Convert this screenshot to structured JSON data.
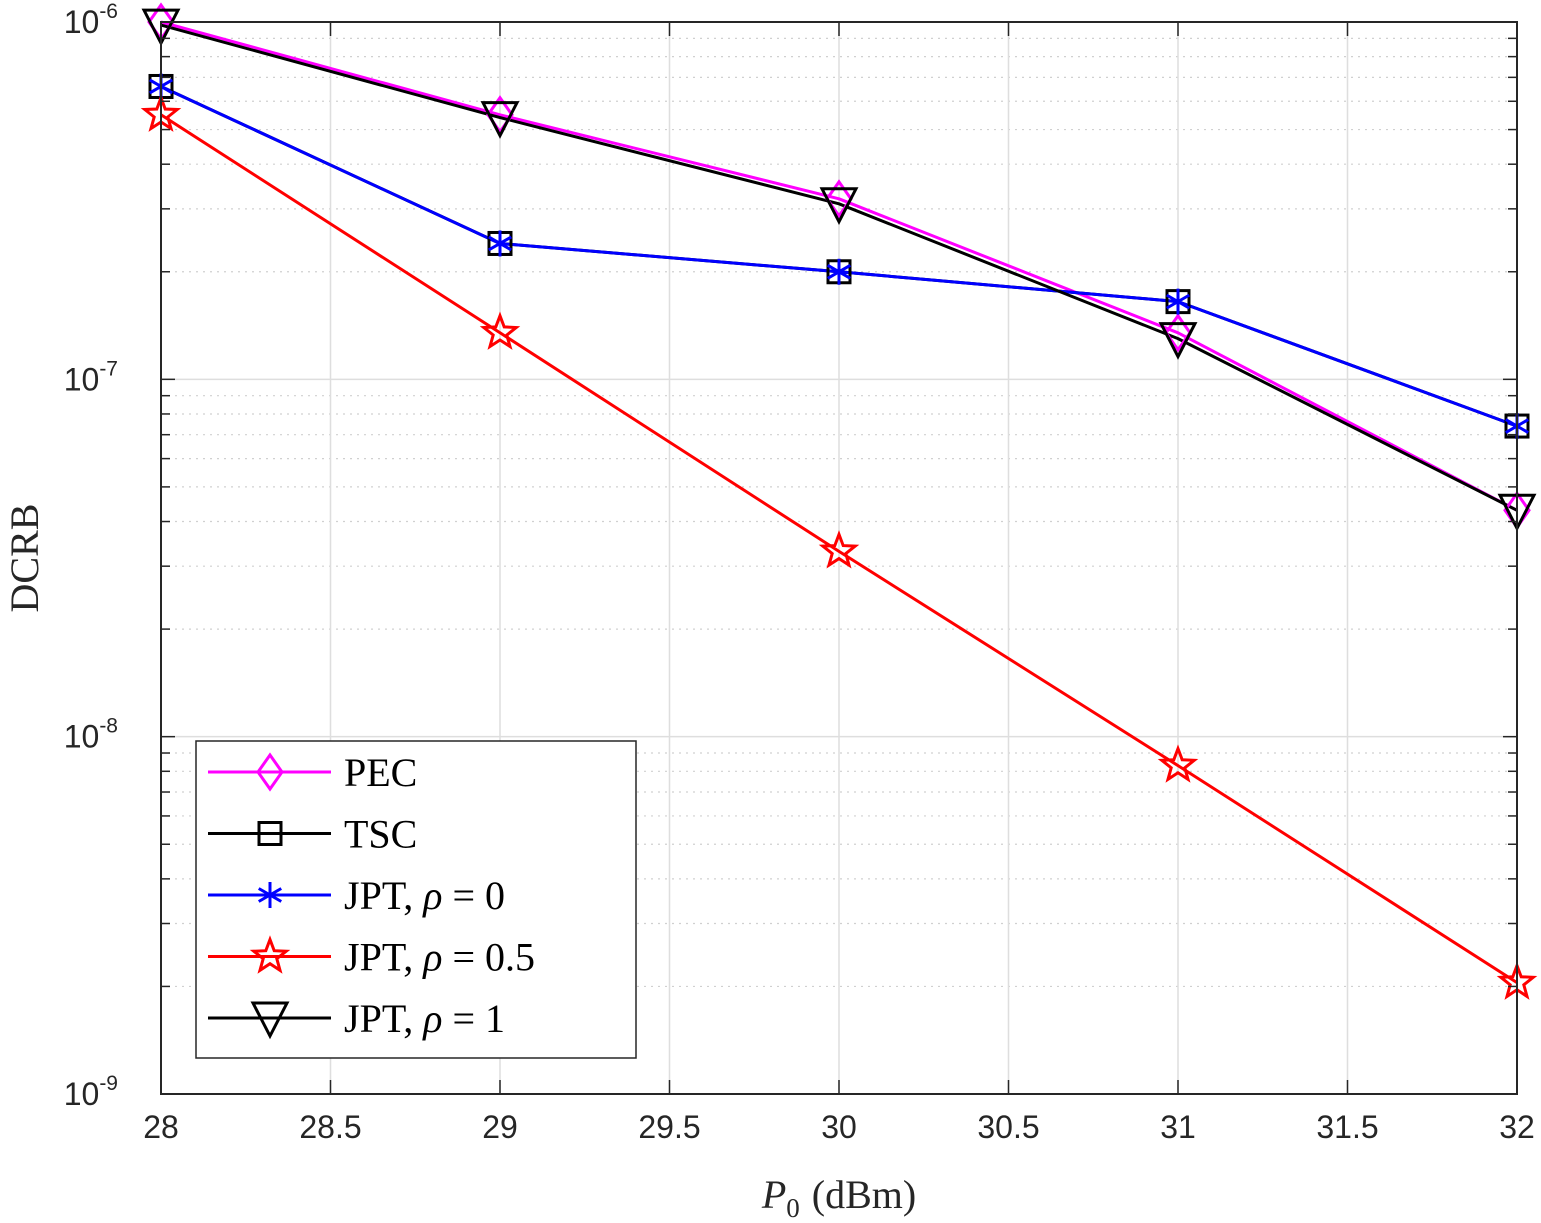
{
  "chart_data": {
    "type": "line",
    "x_scale": "linear",
    "y_scale": "log",
    "xlabel": "P",
    "xlabel_subscript": "0",
    "xlabel_unit": "(dBm)",
    "ylabel": "DCRB",
    "xlim": [
      28,
      32
    ],
    "ylim": [
      1e-09,
      1e-06
    ],
    "x_ticks": [
      {
        "value": 28,
        "label": "28"
      },
      {
        "value": 28.5,
        "label": "28.5"
      },
      {
        "value": 29,
        "label": "29"
      },
      {
        "value": 29.5,
        "label": "29.5"
      },
      {
        "value": 30,
        "label": "30"
      },
      {
        "value": 30.5,
        "label": "30.5"
      },
      {
        "value": 31,
        "label": "31"
      },
      {
        "value": 31.5,
        "label": "31.5"
      },
      {
        "value": 32,
        "label": "32"
      }
    ],
    "y_ticks": [
      {
        "value": 1e-09,
        "base": "10",
        "exponent": "-9"
      },
      {
        "value": 1e-08,
        "base": "10",
        "exponent": "-8"
      },
      {
        "value": 1e-07,
        "base": "10",
        "exponent": "-7"
      },
      {
        "value": 1e-06,
        "base": "10",
        "exponent": "-6"
      }
    ],
    "grid": true,
    "minor_grid": true,
    "legend_position": "bottom-left",
    "x": [
      28,
      29,
      30,
      31,
      32
    ],
    "series": [
      {
        "name": "PEC",
        "label_main": "PEC",
        "label_param": "",
        "label_rhs": "",
        "color": "#ff00ff",
        "marker": "diamond",
        "values": [
          1e-06,
          5.5e-07,
          3.2e-07,
          1.35e-07,
          4.3e-08
        ]
      },
      {
        "name": "TSC",
        "label_main": "TSC",
        "label_param": "",
        "label_rhs": "",
        "color": "#000000",
        "marker": "square",
        "values": [
          6.6e-07,
          2.4e-07,
          2e-07,
          1.65e-07,
          7.4e-08
        ]
      },
      {
        "name": "JPT, ρ = 0",
        "label_main": "JPT, ",
        "label_param": "ρ",
        "label_rhs": " = 0",
        "color": "#0000ff",
        "marker": "asterisk",
        "values": [
          6.6e-07,
          2.4e-07,
          2e-07,
          1.65e-07,
          7.4e-08
        ]
      },
      {
        "name": "JPT, ρ = 0.5",
        "label_main": "JPT, ",
        "label_param": "ρ",
        "label_rhs": " = 0.5",
        "color": "#ff0000",
        "marker": "pentagram",
        "values": [
          5.5e-07,
          1.35e-07,
          3.3e-08,
          8.3e-09,
          2.05e-09
        ]
      },
      {
        "name": "JPT, ρ = 1",
        "label_main": "JPT, ",
        "label_param": "ρ",
        "label_rhs": " = 1",
        "color": "#000000",
        "marker": "triangle-down",
        "values": [
          9.8e-07,
          5.4e-07,
          3.1e-07,
          1.3e-07,
          4.3e-08
        ]
      }
    ]
  }
}
